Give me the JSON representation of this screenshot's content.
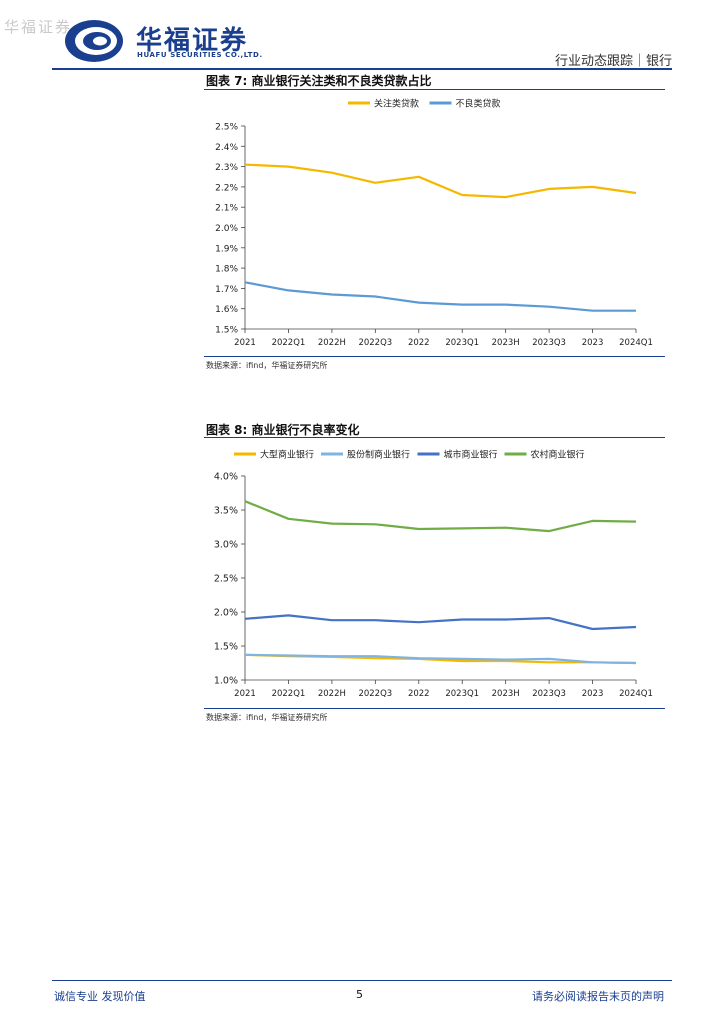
{
  "header": {
    "watermark": "华福证券",
    "company_cn": "华福证券",
    "company_en": "HUAFU SECURITIES CO.,LTD.",
    "report_type": "行业动态跟踪｜银行"
  },
  "figures": [
    {
      "title": "图表 7:  商业银行关注类和不良类贷款占比",
      "source": "数据来源：ifind，华福证券研究所"
    },
    {
      "title": "图表 8:  商业银行不良率变化",
      "source": "数据来源：ifind，华福证券研究所"
    }
  ],
  "chart_data": [
    {
      "type": "line",
      "title": "商业银行关注类和不良类贷款占比",
      "categories": [
        "2021",
        "2022Q1",
        "2022H",
        "2022Q3",
        "2022",
        "2023Q1",
        "2023H",
        "2023Q3",
        "2023",
        "2024Q1"
      ],
      "ylim": [
        1.5,
        2.5
      ],
      "yticks": [
        "2.5%",
        "2.4%",
        "2.3%",
        "2.2%",
        "2.1%",
        "2.0%",
        "1.9%",
        "1.8%",
        "1.7%",
        "1.6%",
        "1.5%"
      ],
      "legend_position": "top",
      "series": [
        {
          "name": "关注类贷款",
          "color": "#f5b800",
          "values": [
            2.31,
            2.3,
            2.27,
            2.22,
            2.25,
            2.16,
            2.15,
            2.19,
            2.2,
            2.17
          ]
        },
        {
          "name": "不良类贷款",
          "color": "#5b9bd5",
          "values": [
            1.73,
            1.69,
            1.67,
            1.66,
            1.63,
            1.62,
            1.62,
            1.61,
            1.59,
            1.59
          ]
        }
      ]
    },
    {
      "type": "line",
      "title": "商业银行不良率变化",
      "categories": [
        "2021",
        "2022Q1",
        "2022H",
        "2022Q3",
        "2022",
        "2023Q1",
        "2023H",
        "2023Q3",
        "2023",
        "2024Q1"
      ],
      "ylim": [
        1.0,
        4.0
      ],
      "yticks": [
        "4.0%",
        "3.5%",
        "3.0%",
        "2.5%",
        "2.0%",
        "1.5%",
        "1.0%"
      ],
      "legend_position": "top",
      "series": [
        {
          "name": "大型商业银行",
          "color": "#f5b800",
          "values": [
            1.37,
            1.35,
            1.34,
            1.32,
            1.31,
            1.28,
            1.28,
            1.26,
            1.26,
            1.25
          ]
        },
        {
          "name": "股份制商业银行",
          "color": "#7fb3e0",
          "values": [
            1.37,
            1.36,
            1.35,
            1.35,
            1.32,
            1.31,
            1.3,
            1.31,
            1.26,
            1.25
          ]
        },
        {
          "name": "城市商业银行",
          "color": "#4472c4",
          "values": [
            1.9,
            1.95,
            1.88,
            1.88,
            1.85,
            1.89,
            1.89,
            1.91,
            1.75,
            1.78
          ]
        },
        {
          "name": "农村商业银行",
          "color": "#70ad47",
          "values": [
            3.63,
            3.37,
            3.3,
            3.29,
            3.22,
            3.23,
            3.24,
            3.19,
            3.34,
            3.33
          ]
        }
      ]
    }
  ],
  "footer": {
    "left": "诚信专业  发现价值",
    "page": "5",
    "right": "请务必阅读报告末页的声明"
  }
}
